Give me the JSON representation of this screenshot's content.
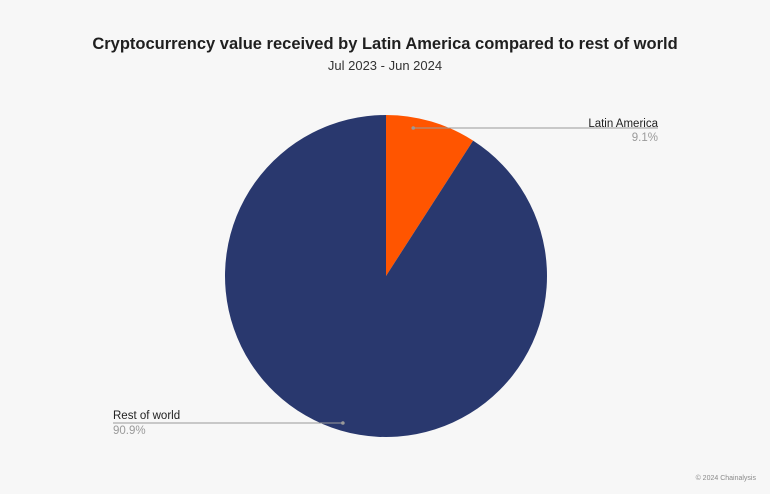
{
  "chart_data": {
    "type": "pie",
    "title": "Cryptocurrency value received by Latin America compared to rest of world",
    "subtitle": "Jul 2023 - Jun 2024",
    "slices": [
      {
        "name": "Latin America",
        "value": 9.1,
        "label": "9.1%",
        "color": "#ff5500"
      },
      {
        "name": "Rest of world",
        "value": 90.9,
        "label": "90.9%",
        "color": "#29386e"
      }
    ],
    "legend": "none",
    "grid": false
  },
  "footer": {
    "credit": "© 2024 Chainalysis"
  },
  "colors": {
    "background": "#f7f7f7",
    "leader_line": "#9a9a9a"
  }
}
